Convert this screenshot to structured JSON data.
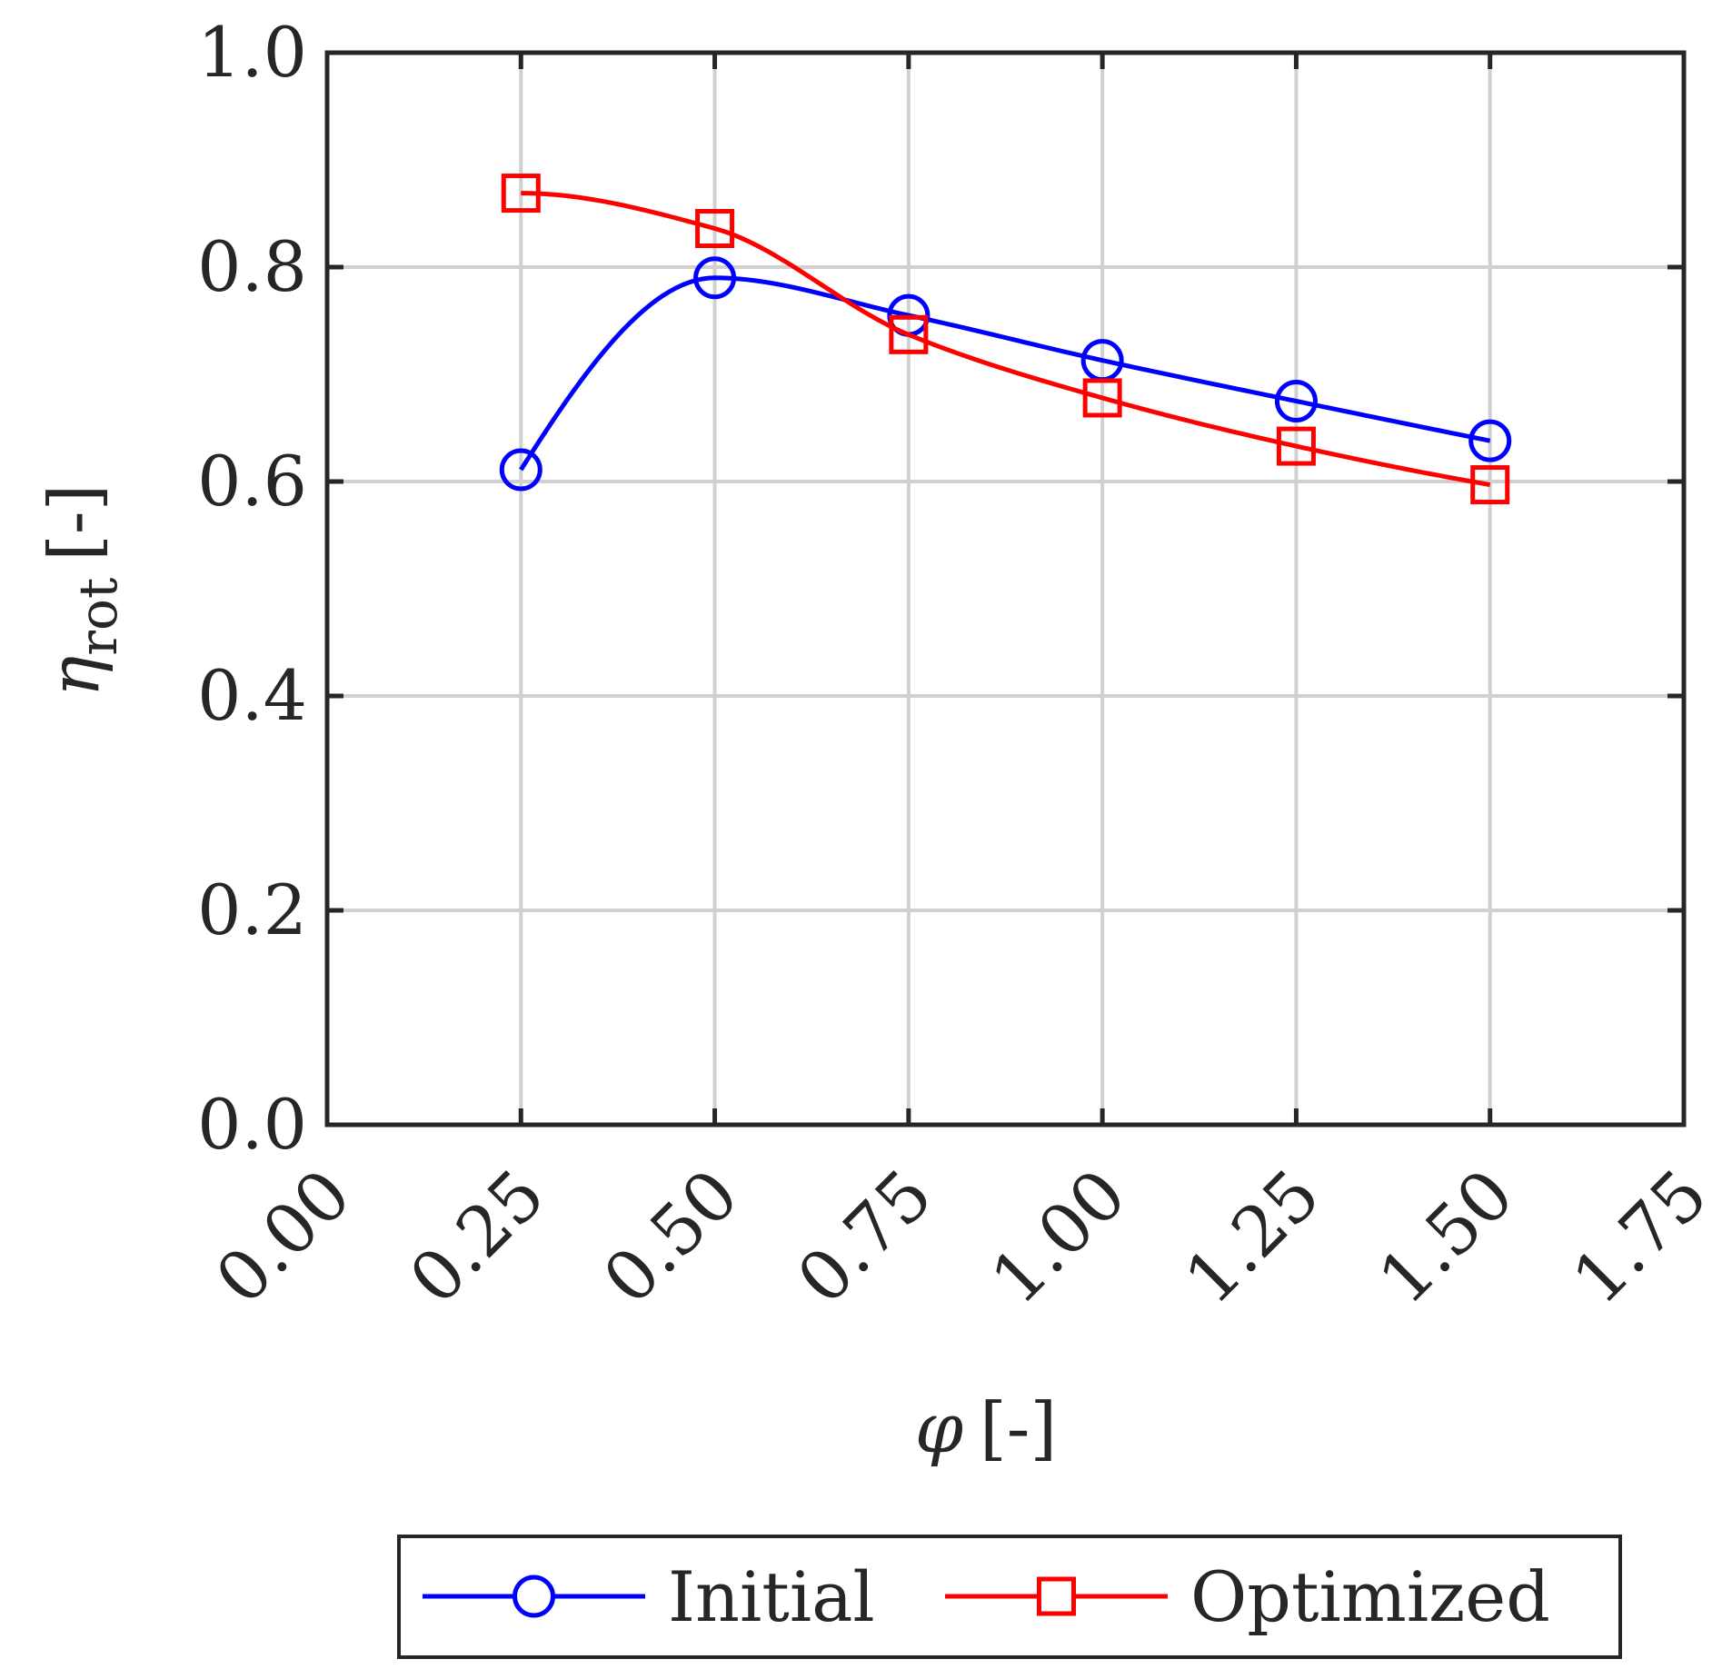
{
  "chart_data": {
    "type": "line",
    "xlabel": {
      "symbol": "φ",
      "unit": "[-]"
    },
    "ylabel": {
      "symbol": "η",
      "subscript": "rot",
      "unit": "[-]"
    },
    "xlim": [
      0.0,
      1.75
    ],
    "ylim": [
      0.0,
      1.0
    ],
    "xticks": [
      0.0,
      0.25,
      0.5,
      0.75,
      1.0,
      1.25,
      1.5,
      1.75
    ],
    "xtick_labels": [
      "0.00",
      "0.25",
      "0.50",
      "0.75",
      "1.00",
      "1.25",
      "1.50",
      "1.75"
    ],
    "yticks": [
      0.0,
      0.2,
      0.4,
      0.6,
      0.8,
      1.0
    ],
    "ytick_labels": [
      "0.0",
      "0.2",
      "0.4",
      "0.6",
      "0.8",
      "1.0"
    ],
    "grid": true,
    "x": [
      0.25,
      0.5,
      0.75,
      1.0,
      1.25,
      1.5
    ],
    "series": [
      {
        "name": "Initial",
        "color": "#0000ff",
        "marker": "circle",
        "values": [
          0.611,
          0.79,
          0.755,
          0.713,
          0.675,
          0.638
        ]
      },
      {
        "name": "Optimized",
        "color": "#ff0000",
        "marker": "square",
        "values": [
          0.869,
          0.836,
          0.737,
          0.678,
          0.633,
          0.597
        ]
      }
    ],
    "legend_position": "bottom-center"
  }
}
